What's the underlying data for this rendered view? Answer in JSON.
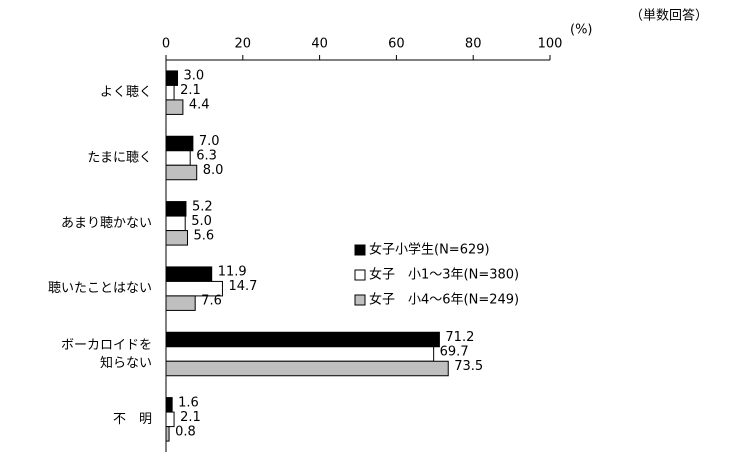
{
  "chart_data": {
    "type": "bar",
    "orientation": "horizontal",
    "note": "（単数回答）",
    "unit_label": "(%)",
    "categories": [
      "よく聴く",
      "たまに聴く",
      "あまり聴かない",
      "聴いたことはない",
      "ボーカロイドを\n知らない",
      "不　明"
    ],
    "series": [
      {
        "name": "女子小学生(N=629)",
        "color": "#000000",
        "values": [
          3.0,
          7.0,
          5.2,
          11.9,
          71.2,
          1.6
        ],
        "value_labels": [
          "3.0",
          "7.0",
          "5.2",
          "11.9",
          "71.2",
          "1.6"
        ]
      },
      {
        "name": "女子　小1～3年(N=380)",
        "color": "#ffffff",
        "values": [
          2.1,
          6.3,
          5.0,
          14.7,
          69.7,
          2.1
        ],
        "value_labels": [
          "2.1",
          "6.3",
          "5.0",
          "14.7",
          "69.7",
          "2.1"
        ]
      },
      {
        "name": "女子　小4～6年(N=249)",
        "color": "#bfbfbf",
        "values": [
          4.4,
          8.0,
          5.6,
          7.6,
          73.5,
          0.8
        ],
        "value_labels": [
          "4.4",
          "8.0",
          "5.6",
          "7.6",
          "73.5",
          "0.8"
        ]
      }
    ],
    "xlim": [
      0,
      100
    ],
    "xticks": [
      0,
      20,
      40,
      60,
      80,
      100
    ],
    "grid": false
  }
}
